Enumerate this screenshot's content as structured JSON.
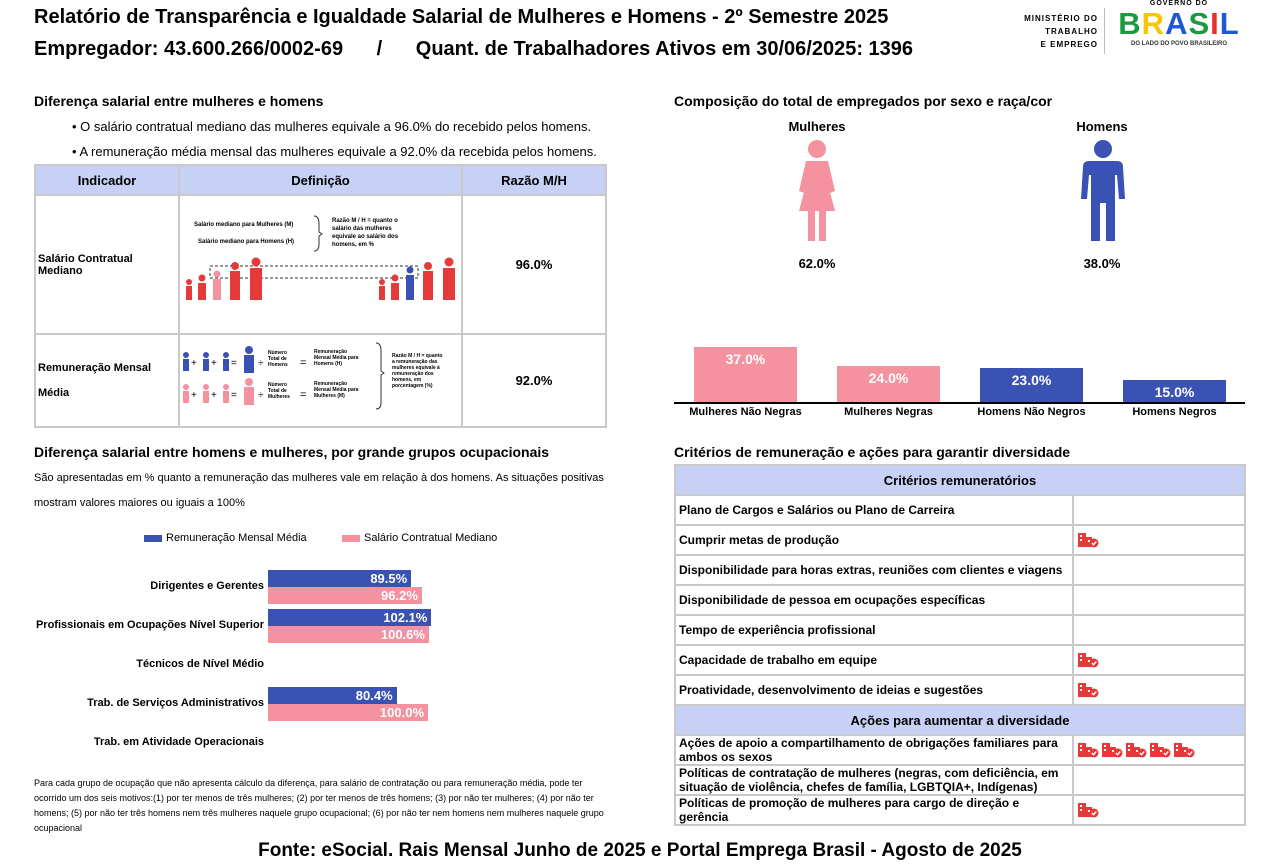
{
  "header": {
    "title": "Relatório de Transparência e Igualdade Salarial de Mulheres e Homens - 2º Semestre 2025",
    "employer_label": "Empregador: 43.600.266/0002-69",
    "separator": "/",
    "workers_label": "Quant. de Trabalhadores Ativos em 30/06/2025: 1396",
    "ministry": [
      "MINISTÉRIO DO",
      "TRABALHO",
      "E EMPREGO"
    ],
    "gov_top": "GOVERNO DO",
    "gov_brand": "BRASIL",
    "gov_tagline": "DO LADO DO POVO BRASILEIRO"
  },
  "diff_section": {
    "title": "Diferença salarial entre mulheres e homens",
    "bullet1": "• O salário contratual mediano das mulheres equivale a 96.0% do recebido pelos homens.",
    "bullet2": "• A remuneração média mensal das mulheres equivale a 92.0% da recebida pelos homens.",
    "table": {
      "col_indicator": "Indicador",
      "col_definition": "Definição",
      "col_ratio": "Razão M/H",
      "row1": {
        "indicator": "Salário Contratual Mediano",
        "ratio": "96.0%",
        "def_women": "Salário mediano para Mulheres (M)",
        "def_men": "Salário mediano para Homens (H)",
        "def_note": "Razão M / H = quanto o salário das mulheres equivale ao salário dos homens, em %"
      },
      "row2": {
        "indicator_line1": "Remuneração Mensal",
        "indicator_line2": "Média",
        "ratio": "92.0%",
        "def_total_men": "Número Total de Homens",
        "def_total_women": "Número Total de Mulheres",
        "def_rem_men": "Remuneração Mensal Média para Homens (H)",
        "def_rem_women": "Remuneração Mensal Média para Mulheres (M)",
        "def_note": "Razão M / H = quanto a remuneração das mulheres equivale à remuneração dos homens, em porcentagem (%)"
      }
    }
  },
  "composition": {
    "title": "Composição do total de empregados por sexo e raça/cor",
    "women_label": "Mulheres",
    "men_label": "Homens",
    "women_pct": "62.0%",
    "men_pct": "38.0%",
    "colors": {
      "women": "#f4929f",
      "men": "#3a52b4"
    }
  },
  "chart_data": [
    {
      "type": "bar",
      "title": "Composição do total de empregados por sexo e raça/cor",
      "categories": [
        "Mulheres Não Negras",
        "Mulheres Negras",
        "Homens Não Negros",
        "Homens Negros"
      ],
      "values": [
        37.0,
        24.0,
        23.0,
        15.0
      ],
      "labels": [
        "37.0%",
        "24.0%",
        "23.0%",
        "15.0%"
      ],
      "colors": [
        "#f4929f",
        "#f4929f",
        "#3a52b4",
        "#3a52b4"
      ],
      "ylim": [
        0,
        40
      ]
    },
    {
      "type": "bar",
      "orientation": "horizontal",
      "title": "Diferença salarial entre homens e mulheres, por grande grupos ocupacionais",
      "categories": [
        "Dirigentes e Gerentes",
        "Profissionais em Ocupações Nível Superior",
        "Técnicos de Nível Médio",
        "Trab. de Serviços Administrativos",
        "Trab. em Atividade Operacionais"
      ],
      "series": [
        {
          "name": "Remuneração Mensal Média",
          "values": [
            89.5,
            102.1,
            null,
            80.4,
            null
          ],
          "labels": [
            "89.5%",
            "102.1%",
            "",
            "80.4%",
            ""
          ],
          "color": "#3a52b4"
        },
        {
          "name": "Salário Contratual Mediano",
          "values": [
            96.2,
            100.6,
            null,
            100.0,
            null
          ],
          "labels": [
            "96.2%",
            "100.6%",
            "",
            "100.0%",
            ""
          ],
          "color": "#f4929f"
        }
      ],
      "xlim": [
        0,
        110
      ]
    }
  ],
  "occupational": {
    "title": "Diferença salarial entre homens e mulheres, por grande grupos ocupacionais",
    "desc_line1": "São apresentadas em % quanto a remuneração das mulheres vale em relação à dos homens. As situações positivas",
    "desc_line2": "mostram valores maiores ou iguais a 100%",
    "legend1": "Remuneração Mensal Média",
    "legend2": "Salário Contratual Mediano",
    "footnote": "Para cada grupo de ocupação que não apresenta cálculo da diferença, para salário de contratação ou para remuneração média, pode ter ocorrido um dos seis motivos:(1) por ter menos de três mulheres; (2) por ter menos de três homens; (3) por não ter mulheres; (4) por não ter homens; (5) por não ter três homens nem três mulheres naquele grupo ocupacional; (6) por não ter nem homens nem mulheres naquele grupo ocupacional"
  },
  "criteria": {
    "title": "Critérios de remuneração e ações para garantir diversidade",
    "header1": "Critérios remuneratórios",
    "rows1": [
      {
        "label": "Plano de Cargos e Salários ou Plano de Carreira",
        "icons": 0
      },
      {
        "label": "Cumprir metas de produção",
        "icons": 1
      },
      {
        "label": "Disponibilidade para horas extras, reuniões com clientes e viagens",
        "icons": 0
      },
      {
        "label": "Disponibilidade de pessoa em ocupações específicas",
        "icons": 0
      },
      {
        "label": "Tempo de experiência profissional",
        "icons": 0
      },
      {
        "label": "Capacidade de trabalho em equipe",
        "icons": 1
      },
      {
        "label": "Proatividade, desenvolvimento de ideias e sugestões",
        "icons": 1
      }
    ],
    "header2": "Ações para aumentar a diversidade",
    "rows2": [
      {
        "label": "Ações de apoio a compartilhamento de obrigações familiares para ambos os sexos",
        "icons": 5
      },
      {
        "label": "Políticas de contratação de mulheres (negras, com deficiência, em situação de violência, chefes de família, LGBTQIA+, Indígenas)",
        "icons": 0
      },
      {
        "label": "Políticas de promoção de mulheres para cargo de direção e gerência",
        "icons": 1
      }
    ]
  },
  "footer": {
    "source": "Fonte: eSocial. Rais Mensal Junho de 2025 e Portal Emprega Brasil - Agosto de 2025"
  }
}
